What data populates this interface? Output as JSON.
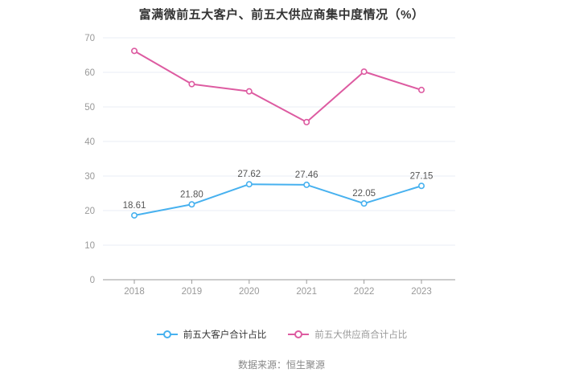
{
  "page": {
    "title": "富满微前五大客户、前五大供应商集中度情况（%）",
    "source": "数据来源：恒生聚源"
  },
  "chart_data": {
    "type": "line",
    "title": "富满微前五大客户、前五大供应商集中度情况（%）",
    "categories": [
      "2018",
      "2019",
      "2020",
      "2021",
      "2022",
      "2023"
    ],
    "series": [
      {
        "name": "前五大客户合计占比",
        "color": "#47b1ef",
        "values": [
          18.61,
          21.8,
          27.62,
          27.46,
          22.05,
          27.15
        ],
        "labels": [
          "18.61",
          "21.80",
          "27.62",
          "27.46",
          "22.05",
          "27.15"
        ],
        "show_labels": true,
        "legend_text_color": "#333333"
      },
      {
        "name": "前五大供应商合计占比",
        "color": "#dd5ba1",
        "values": [
          66.2,
          56.6,
          54.5,
          45.6,
          60.2,
          54.9
        ],
        "labels": [],
        "show_labels": false,
        "legend_text_color": "#999999"
      }
    ],
    "ylim": [
      0,
      70
    ],
    "y_ticks": [
      0,
      10,
      20,
      30,
      40,
      50,
      60,
      70
    ],
    "grid": true,
    "legend_position": "bottom",
    "xlabel": "",
    "ylabel": ""
  },
  "style_colors": {
    "grid_line": "#e9edf5",
    "axis_line": "#999999",
    "tick_label": "#999999",
    "data_label": "#555555",
    "marker_fill": "#ffffff"
  }
}
